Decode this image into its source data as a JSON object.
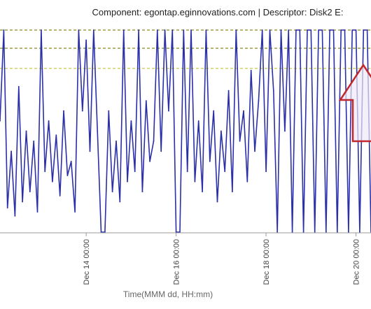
{
  "chart_data": {
    "type": "line",
    "title": "Component: egontap.eginnovations.com | Descriptor: Disk2 E:",
    "xlabel": "Time(MMM dd, HH:mm)",
    "ylabel": "",
    "x_ticks": [
      "Dec 14 00:00",
      "Dec 16 00:00",
      "Dec 18 00:00",
      "Dec 20 00:00"
    ],
    "x_range": [
      "Dec 12 02:00",
      "Dec 20 08:00"
    ],
    "ylim": [
      0,
      100
    ],
    "threshold_lines": [
      {
        "value": 100,
        "color": "#8a8a1e",
        "style": "dashed"
      },
      {
        "value": 91,
        "color": "#8a8a1e",
        "style": "dashed"
      },
      {
        "value": 81,
        "color": "#c9c94a",
        "style": "dashed"
      }
    ],
    "series": [
      {
        "color": "#2b2fa8",
        "points": [
          [
            "Dec 12 02:00",
            55
          ],
          [
            "Dec 12 04:00",
            100
          ],
          [
            "Dec 12 06:00",
            12
          ],
          [
            "Dec 12 08:00",
            40
          ],
          [
            "Dec 12 10:00",
            8
          ],
          [
            "Dec 12 12:00",
            72
          ],
          [
            "Dec 12 14:00",
            15
          ],
          [
            "Dec 12 16:00",
            50
          ],
          [
            "Dec 12 18:00",
            20
          ],
          [
            "Dec 12 20:00",
            45
          ],
          [
            "Dec 12 22:00",
            10
          ],
          [
            "Dec 13 00:00",
            100
          ],
          [
            "Dec 13 02:00",
            30
          ],
          [
            "Dec 13 04:00",
            55
          ],
          [
            "Dec 13 06:00",
            25
          ],
          [
            "Dec 13 08:00",
            48
          ],
          [
            "Dec 13 10:00",
            18
          ],
          [
            "Dec 13 12:00",
            60
          ],
          [
            "Dec 13 14:00",
            28
          ],
          [
            "Dec 13 16:00",
            35
          ],
          [
            "Dec 13 18:00",
            10
          ],
          [
            "Dec 13 20:00",
            100
          ],
          [
            "Dec 13 22:00",
            60
          ],
          [
            "Dec 14 00:00",
            95
          ],
          [
            "Dec 14 02:00",
            40
          ],
          [
            "Dec 14 04:00",
            100
          ],
          [
            "Dec 14 06:00",
            50
          ],
          [
            "Dec 14 08:00",
            0
          ],
          [
            "Dec 14 10:00",
            0
          ],
          [
            "Dec 14 12:00",
            60
          ],
          [
            "Dec 14 14:00",
            20
          ],
          [
            "Dec 14 16:00",
            45
          ],
          [
            "Dec 14 18:00",
            15
          ],
          [
            "Dec 14 20:00",
            100
          ],
          [
            "Dec 14 22:00",
            25
          ],
          [
            "Dec 15 00:00",
            55
          ],
          [
            "Dec 15 02:00",
            30
          ],
          [
            "Dec 15 04:00",
            100
          ],
          [
            "Dec 15 06:00",
            20
          ],
          [
            "Dec 15 08:00",
            65
          ],
          [
            "Dec 15 10:00",
            35
          ],
          [
            "Dec 15 12:00",
            45
          ],
          [
            "Dec 15 14:00",
            100
          ],
          [
            "Dec 15 16:00",
            40
          ],
          [
            "Dec 15 18:00",
            100
          ],
          [
            "Dec 15 20:00",
            60
          ],
          [
            "Dec 15 22:00",
            100
          ],
          [
            "Dec 16 00:00",
            0
          ],
          [
            "Dec 16 02:00",
            0
          ],
          [
            "Dec 16 04:00",
            100
          ],
          [
            "Dec 16 06:00",
            30
          ],
          [
            "Dec 16 08:00",
            100
          ],
          [
            "Dec 16 10:00",
            25
          ],
          [
            "Dec 16 12:00",
            55
          ],
          [
            "Dec 16 14:00",
            20
          ],
          [
            "Dec 16 16:00",
            100
          ],
          [
            "Dec 16 18:00",
            35
          ],
          [
            "Dec 16 20:00",
            60
          ],
          [
            "Dec 16 22:00",
            15
          ],
          [
            "Dec 17 00:00",
            50
          ],
          [
            "Dec 17 02:00",
            30
          ],
          [
            "Dec 17 04:00",
            70
          ],
          [
            "Dec 17 06:00",
            20
          ],
          [
            "Dec 17 08:00",
            100
          ],
          [
            "Dec 17 10:00",
            45
          ],
          [
            "Dec 17 12:00",
            60
          ],
          [
            "Dec 17 14:00",
            25
          ],
          [
            "Dec 17 16:00",
            80
          ],
          [
            "Dec 17 18:00",
            40
          ],
          [
            "Dec 17 20:00",
            65
          ],
          [
            "Dec 17 22:00",
            100
          ],
          [
            "Dec 18 00:00",
            30
          ],
          [
            "Dec 18 02:00",
            100
          ],
          [
            "Dec 18 04:00",
            70
          ],
          [
            "Dec 18 06:00",
            0
          ],
          [
            "Dec 18 08:00",
            100
          ],
          [
            "Dec 18 10:00",
            50
          ],
          [
            "Dec 18 12:00",
            100
          ],
          [
            "Dec 18 14:00",
            0
          ],
          [
            "Dec 18 16:00",
            100
          ],
          [
            "Dec 18 18:00",
            100
          ],
          [
            "Dec 18 20:00",
            0
          ],
          [
            "Dec 18 22:00",
            100
          ],
          [
            "Dec 19 00:00",
            100
          ],
          [
            "Dec 19 02:00",
            0
          ],
          [
            "Dec 19 04:00",
            100
          ],
          [
            "Dec 19 06:00",
            100
          ],
          [
            "Dec 19 08:00",
            0
          ],
          [
            "Dec 19 10:00",
            100
          ],
          [
            "Dec 19 12:00",
            100
          ],
          [
            "Dec 19 14:00",
            0
          ],
          [
            "Dec 19 16:00",
            100
          ],
          [
            "Dec 19 18:00",
            100
          ],
          [
            "Dec 19 20:00",
            0
          ],
          [
            "Dec 19 22:00",
            100
          ],
          [
            "Dec 20 00:00",
            100
          ],
          [
            "Dec 20 02:00",
            0
          ],
          [
            "Dec 20 04:00",
            100
          ],
          [
            "Dec 20 06:00",
            100
          ],
          [
            "Dec 20 08:00",
            0
          ]
        ]
      }
    ],
    "grid": false,
    "annotation": {
      "type": "arrow",
      "color": "#c0282d",
      "fill": "#efe8f5",
      "direction": "up"
    }
  }
}
